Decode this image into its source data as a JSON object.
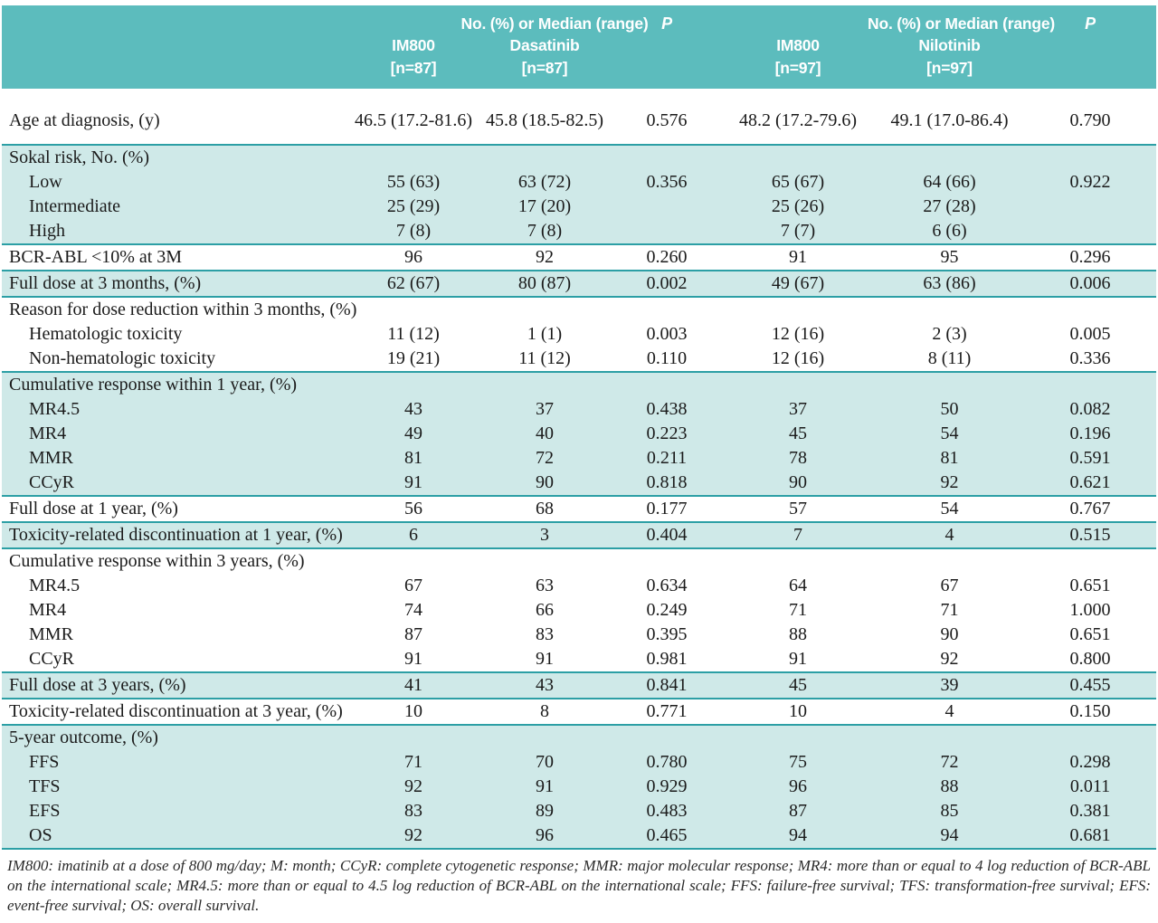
{
  "colors": {
    "header_teal": "#5cbcbd",
    "row_teal": "#cfe9e8",
    "line_teal": "#2c9fa5"
  },
  "table": {
    "header": {
      "group_label_left": "No. (%) or Median (range)",
      "p_left": "P",
      "group_label_right": "No. (%) or Median (range)",
      "p_right": "P",
      "columns": [
        {
          "drug": "IM800",
          "n": "[n=87]"
        },
        {
          "drug": "Dasatinib",
          "n": "[n=87]"
        },
        {
          "drug": "IM800",
          "n": "[n=97]"
        },
        {
          "drug": "Nilotinib",
          "n": "[n=97]"
        }
      ]
    },
    "rows": [
      {
        "label": "Age at diagnosis, (y)",
        "cells": [
          "46.5 (17.2-81.6)",
          "45.8 (18.5-82.5)",
          "0.576",
          "48.2 (17.2-79.6)",
          "49.1 (17.0-86.4)",
          "0.790"
        ],
        "shade": "white",
        "indent": false,
        "line": false,
        "tall": true
      },
      {
        "label": "Sokal risk, No. (%)",
        "cells": [
          "",
          "",
          "",
          "",
          "",
          ""
        ],
        "shade": "teal",
        "indent": false,
        "line": true,
        "tall": false
      },
      {
        "label": "Low",
        "cells": [
          "55 (63)",
          "63 (72)",
          "0.356",
          "65 (67)",
          "64 (66)",
          "0.922"
        ],
        "shade": "teal",
        "indent": true,
        "line": false,
        "tall": false
      },
      {
        "label": "Intermediate",
        "cells": [
          "25 (29)",
          "17 (20)",
          "",
          "25 (26)",
          "27 (28)",
          ""
        ],
        "shade": "teal",
        "indent": true,
        "line": false,
        "tall": false
      },
      {
        "label": "High",
        "cells": [
          "7 (8)",
          "7 (8)",
          "",
          "7 (7)",
          "6 (6)",
          ""
        ],
        "shade": "teal",
        "indent": true,
        "line": false,
        "tall": false
      },
      {
        "label": "BCR-ABL <10% at 3M",
        "cells": [
          "96",
          "92",
          "0.260",
          "91",
          "95",
          "0.296"
        ],
        "shade": "white",
        "indent": false,
        "line": true,
        "tall": false
      },
      {
        "label": "Full dose at 3 months, (%)",
        "cells": [
          "62 (67)",
          "80 (87)",
          "0.002",
          "49 (67)",
          "63 (86)",
          "0.006"
        ],
        "shade": "teal",
        "indent": false,
        "line": true,
        "tall": false
      },
      {
        "label": "Reason for dose reduction within 3 months, (%)",
        "cells": [
          "",
          "",
          "",
          "",
          "",
          ""
        ],
        "shade": "white",
        "indent": false,
        "line": true,
        "tall": false
      },
      {
        "label": "Hematologic toxicity",
        "cells": [
          "11 (12)",
          "1 (1)",
          "0.003",
          "12 (16)",
          "2 (3)",
          "0.005"
        ],
        "shade": "white",
        "indent": true,
        "line": false,
        "tall": false
      },
      {
        "label": "Non-hematologic toxicity",
        "cells": [
          "19 (21)",
          "11 (12)",
          "0.110",
          "12 (16)",
          "8 (11)",
          "0.336"
        ],
        "shade": "white",
        "indent": true,
        "line": false,
        "tall": false
      },
      {
        "label": "Cumulative response within 1 year, (%)",
        "cells": [
          "",
          "",
          "",
          "",
          "",
          ""
        ],
        "shade": "teal",
        "indent": false,
        "line": true,
        "tall": false
      },
      {
        "label": "MR4.5",
        "cells": [
          "43",
          "37",
          "0.438",
          "37",
          "50",
          "0.082"
        ],
        "shade": "teal",
        "indent": true,
        "line": false,
        "tall": false
      },
      {
        "label": "MR4",
        "cells": [
          "49",
          "40",
          "0.223",
          "45",
          "54",
          "0.196"
        ],
        "shade": "teal",
        "indent": true,
        "line": false,
        "tall": false
      },
      {
        "label": "MMR",
        "cells": [
          "81",
          "72",
          "0.211",
          "78",
          "81",
          "0.591"
        ],
        "shade": "teal",
        "indent": true,
        "line": false,
        "tall": false
      },
      {
        "label": "CCyR",
        "cells": [
          "91",
          "90",
          "0.818",
          "90",
          "92",
          "0.621"
        ],
        "shade": "teal",
        "indent": true,
        "line": false,
        "tall": false
      },
      {
        "label": "Full dose at 1 year, (%)",
        "cells": [
          "56",
          "68",
          "0.177",
          "57",
          "54",
          "0.767"
        ],
        "shade": "white",
        "indent": false,
        "line": true,
        "tall": false
      },
      {
        "label": "Toxicity-related discontinuation at 1 year, (%)",
        "cells": [
          "6",
          "3",
          "0.404",
          "7",
          "4",
          "0.515"
        ],
        "shade": "teal",
        "indent": false,
        "line": true,
        "tall": false
      },
      {
        "label": "Cumulative response within 3 years, (%)",
        "cells": [
          "",
          "",
          "",
          "",
          "",
          ""
        ],
        "shade": "white",
        "indent": false,
        "line": true,
        "tall": false
      },
      {
        "label": "MR4.5",
        "cells": [
          "67",
          "63",
          "0.634",
          "64",
          "67",
          "0.651"
        ],
        "shade": "white",
        "indent": true,
        "line": false,
        "tall": false
      },
      {
        "label": "MR4",
        "cells": [
          "74",
          "66",
          "0.249",
          "71",
          "71",
          "1.000"
        ],
        "shade": "white",
        "indent": true,
        "line": false,
        "tall": false
      },
      {
        "label": "MMR",
        "cells": [
          "87",
          "83",
          "0.395",
          "88",
          "90",
          "0.651"
        ],
        "shade": "white",
        "indent": true,
        "line": false,
        "tall": false
      },
      {
        "label": "CCyR",
        "cells": [
          "91",
          "91",
          "0.981",
          "91",
          "92",
          "0.800"
        ],
        "shade": "white",
        "indent": true,
        "line": false,
        "tall": false
      },
      {
        "label": "Full dose at 3 years, (%)",
        "cells": [
          "41",
          "43",
          "0.841",
          "45",
          "39",
          "0.455"
        ],
        "shade": "teal",
        "indent": false,
        "line": true,
        "tall": false
      },
      {
        "label": "Toxicity-related discontinuation at 3 year, (%)",
        "cells": [
          "10",
          "8",
          "0.771",
          "10",
          "4",
          "0.150"
        ],
        "shade": "white",
        "indent": false,
        "line": true,
        "tall": false
      },
      {
        "label": "5-year outcome, (%)",
        "cells": [
          "",
          "",
          "",
          "",
          "",
          ""
        ],
        "shade": "teal",
        "indent": false,
        "line": true,
        "tall": false
      },
      {
        "label": "FFS",
        "cells": [
          "71",
          "70",
          "0.780",
          "75",
          "72",
          "0.298"
        ],
        "shade": "teal",
        "indent": true,
        "line": false,
        "tall": false
      },
      {
        "label": "TFS",
        "cells": [
          "92",
          "91",
          "0.929",
          "96",
          "88",
          "0.011"
        ],
        "shade": "teal",
        "indent": true,
        "line": false,
        "tall": false
      },
      {
        "label": "EFS",
        "cells": [
          "83",
          "89",
          "0.483",
          "87",
          "85",
          "0.381"
        ],
        "shade": "teal",
        "indent": true,
        "line": false,
        "tall": false
      },
      {
        "label": "OS",
        "cells": [
          "92",
          "96",
          "0.465",
          "94",
          "94",
          "0.681"
        ],
        "shade": "teal",
        "indent": true,
        "line": false,
        "tall": false
      }
    ]
  },
  "footnote": "IM800: imatinib at a dose of 800 mg/day; M: month; CCyR: complete cytogenetic response; MMR: major molecular response; MR4: more than or equal to 4 log reduction of BCR-ABL on the international scale; MR4.5: more than or equal to 4.5 log reduction of BCR-ABL on the international scale; FFS: failure-free survival; TFS: transformation-free survival; EFS: event-free survival; OS: overall survival."
}
